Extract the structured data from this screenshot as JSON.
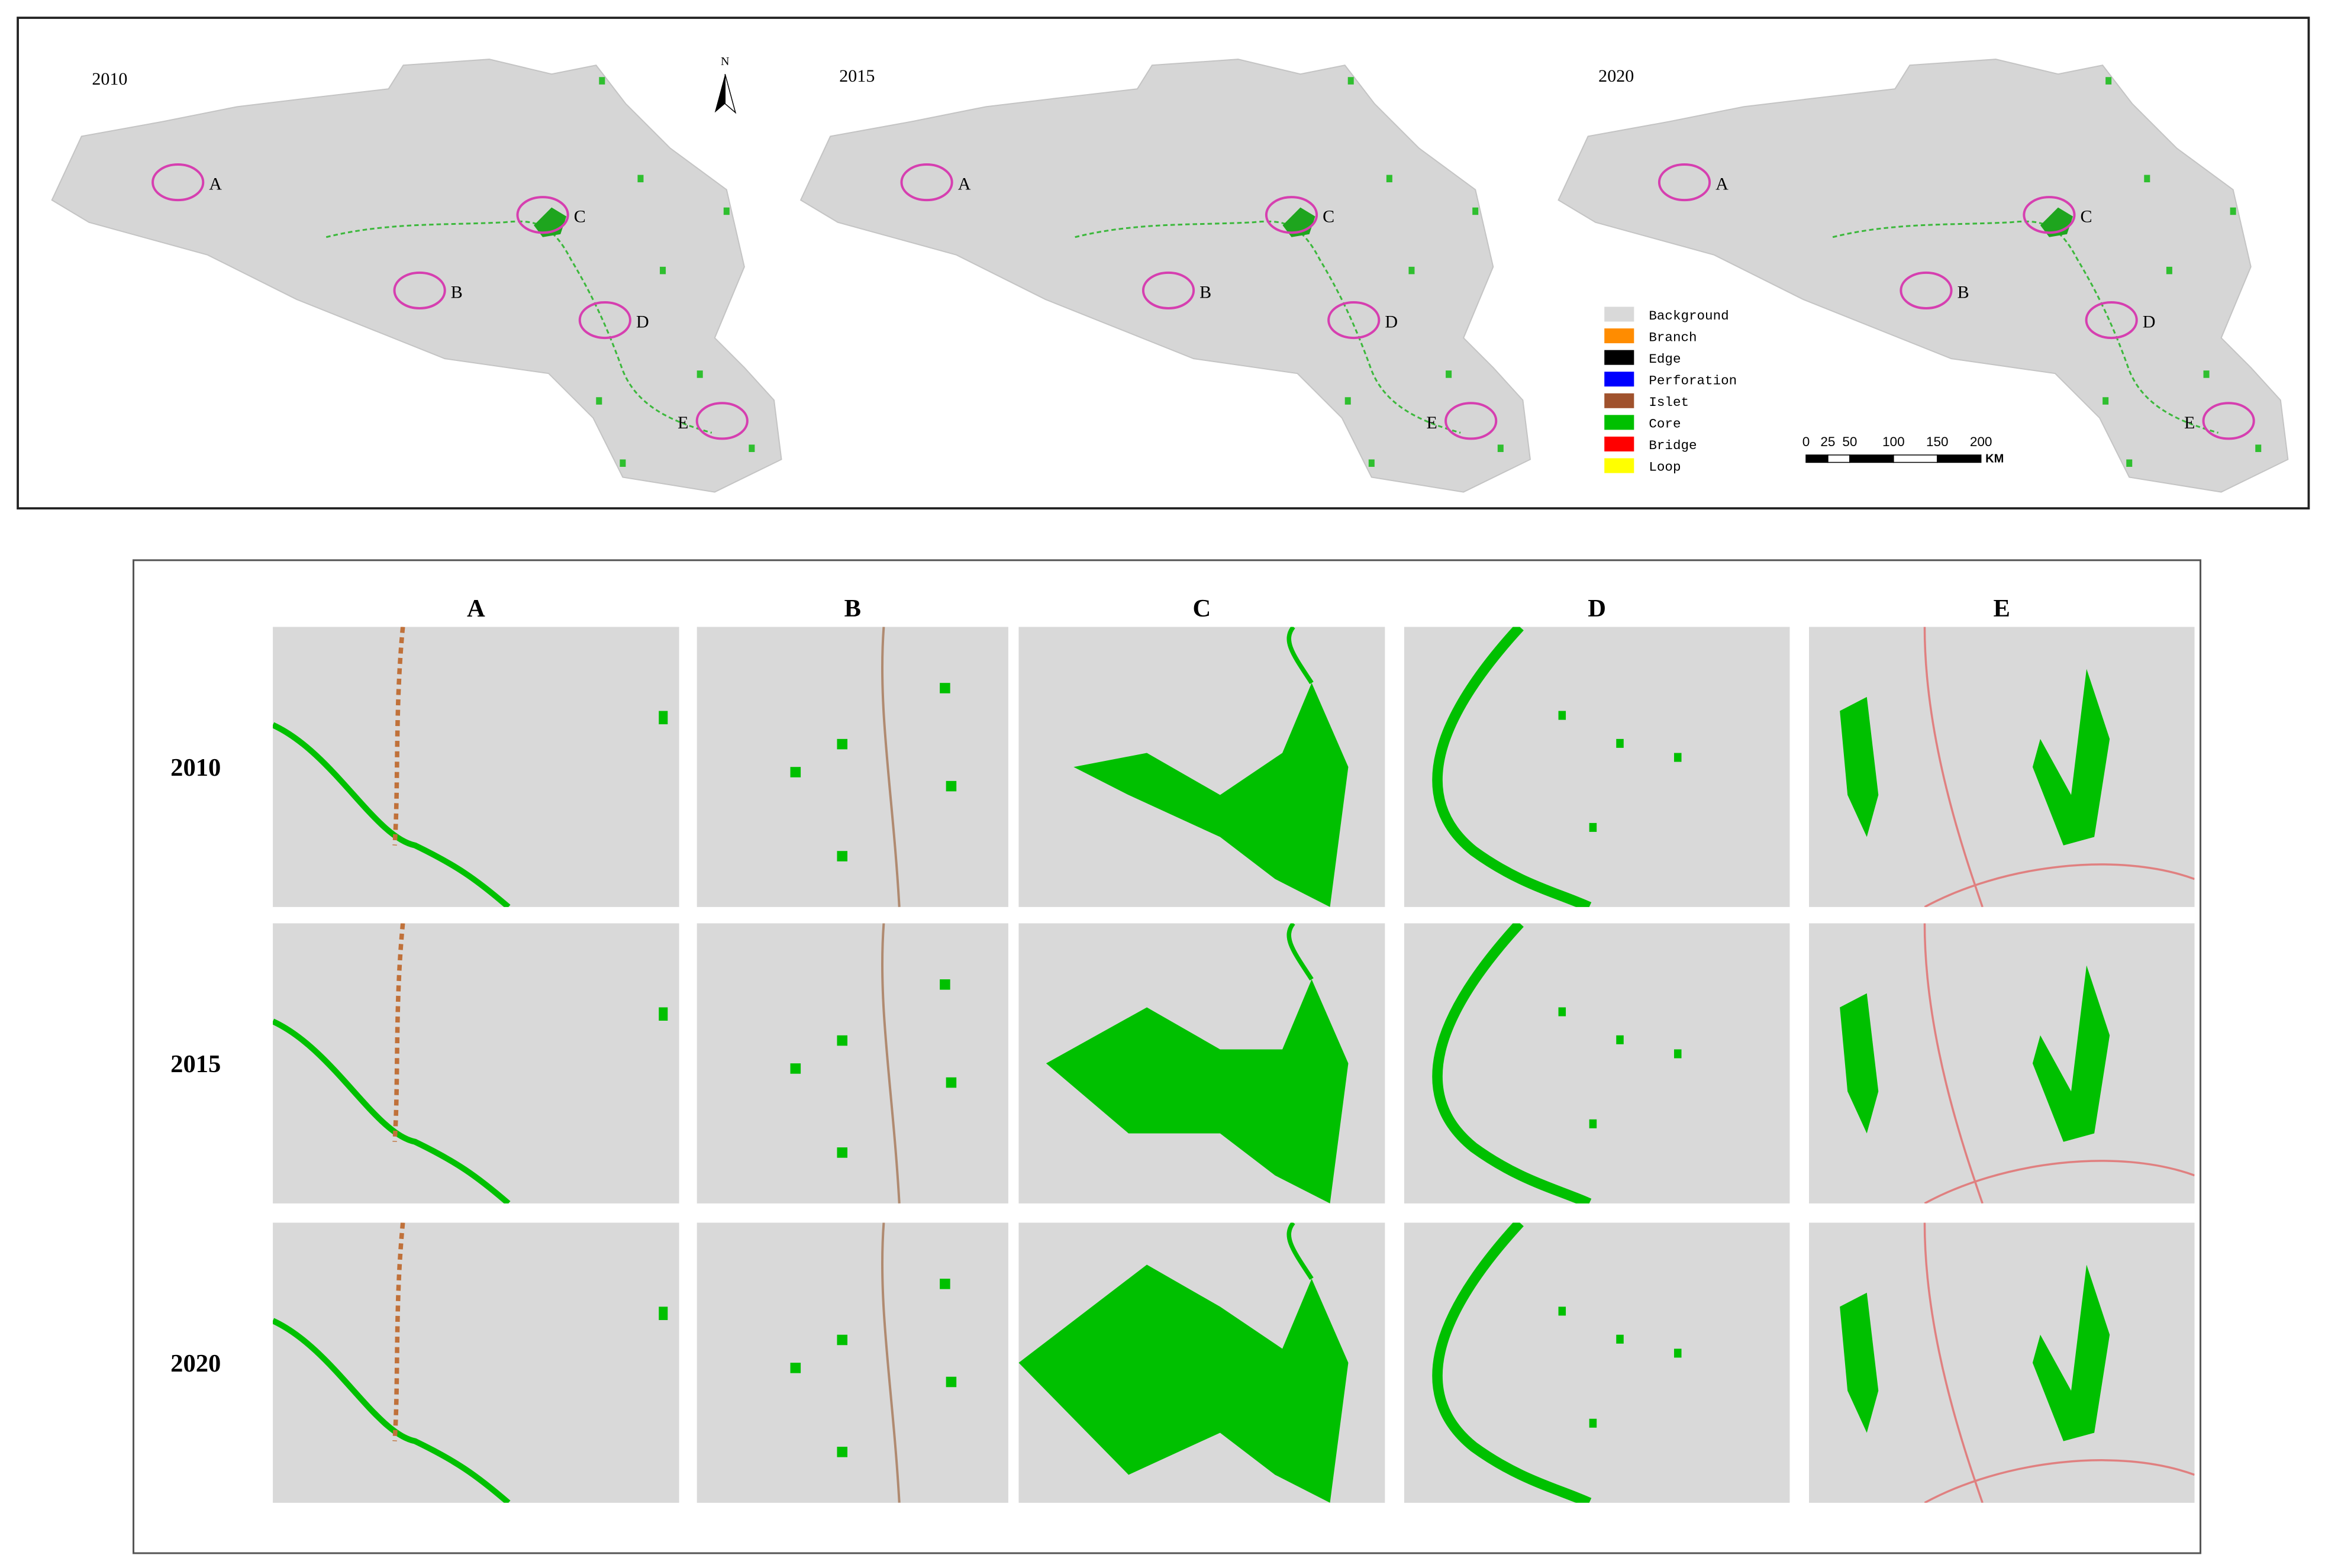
{
  "maps": [
    {
      "year": "2010",
      "sites": [
        "A",
        "B",
        "C",
        "D",
        "E"
      ]
    },
    {
      "year": "2015",
      "sites": [
        "A",
        "B",
        "C",
        "D",
        "E"
      ]
    },
    {
      "year": "2020",
      "sites": [
        "A",
        "B",
        "C",
        "D",
        "E"
      ]
    }
  ],
  "north": "N",
  "legend": [
    {
      "label": "Background",
      "color": "#d9d9d9"
    },
    {
      "label": "Branch",
      "color": "#ff8c00"
    },
    {
      "label": "Edge",
      "color": "#000000"
    },
    {
      "label": "Perforation",
      "color": "#0000ff"
    },
    {
      "label": "Islet",
      "color": "#a0522d"
    },
    {
      "label": "Core",
      "color": "#00c000"
    },
    {
      "label": "Bridge",
      "color": "#ff0000"
    },
    {
      "label": "Loop",
      "color": "#ffff00"
    }
  ],
  "scale_bar": {
    "ticks": [
      0,
      25,
      50,
      100,
      150,
      200
    ],
    "unit": "KM"
  },
  "grid": {
    "columns": [
      "A",
      "B",
      "C",
      "D",
      "E"
    ],
    "rows": [
      "2010",
      "2015",
      "2020"
    ]
  }
}
